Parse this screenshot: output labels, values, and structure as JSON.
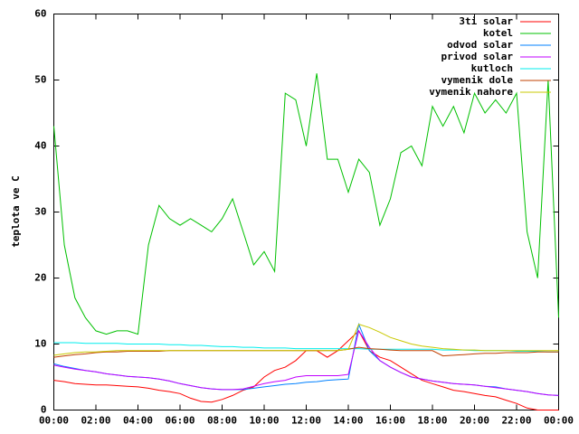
{
  "chart_data": {
    "type": "line",
    "ylabel": "teplota ve C",
    "x": [
      0,
      0.5,
      1,
      1.5,
      2,
      2.5,
      3,
      3.5,
      4,
      4.5,
      5,
      5.5,
      6,
      6.5,
      7,
      7.5,
      8,
      8.5,
      9,
      9.5,
      10,
      10.5,
      11,
      11.5,
      12,
      12.5,
      13,
      13.5,
      14,
      14.5,
      15,
      15.5,
      16,
      16.5,
      17,
      17.5,
      18,
      18.5,
      19,
      19.5,
      20,
      20.5,
      21,
      21.5,
      22,
      22.5,
      23,
      23.5,
      24
    ],
    "xlim": [
      0,
      24
    ],
    "xticks": [
      {
        "value": 0,
        "label": "00:00"
      },
      {
        "value": 2,
        "label": "02:00"
      },
      {
        "value": 4,
        "label": "04:00"
      },
      {
        "value": 6,
        "label": "06:00"
      },
      {
        "value": 8,
        "label": "08:00"
      },
      {
        "value": 10,
        "label": "10:00"
      },
      {
        "value": 12,
        "label": "12:00"
      },
      {
        "value": 14,
        "label": "14:00"
      },
      {
        "value": 16,
        "label": "16:00"
      },
      {
        "value": 18,
        "label": "18:00"
      },
      {
        "value": 20,
        "label": "20:00"
      },
      {
        "value": 22,
        "label": "22:00"
      },
      {
        "value": 24,
        "label": "00:00"
      }
    ],
    "ylim": [
      0,
      60
    ],
    "yticks": [
      0,
      10,
      20,
      30,
      40,
      50,
      60
    ],
    "grid": false,
    "legend": "top-right",
    "series": [
      {
        "name": "3ti solar",
        "color": "#ff0000",
        "values": [
          4.5,
          4.3,
          4,
          3.9,
          3.8,
          3.8,
          3.7,
          3.6,
          3.5,
          3.3,
          3,
          2.8,
          2.5,
          1.8,
          1.3,
          1.2,
          1.6,
          2.2,
          3,
          3.5,
          5,
          6,
          6.5,
          7.5,
          9,
          9,
          8,
          9,
          10.5,
          12,
          9,
          8,
          7.5,
          6.5,
          5.5,
          4.5,
          4,
          3.5,
          3,
          2.8,
          2.5,
          2.2,
          2,
          1.5,
          1,
          0.3,
          0,
          0,
          0
        ]
      },
      {
        "name": "kotel",
        "color": "#00c000",
        "values": [
          43,
          25,
          17,
          14,
          12,
          11.5,
          12,
          12,
          11.5,
          25,
          31,
          29,
          28,
          29,
          28,
          27,
          29,
          32,
          27,
          22,
          24,
          21,
          48,
          47,
          40,
          51,
          38,
          38,
          33,
          38,
          36,
          28,
          32,
          39,
          40,
          37,
          46,
          43,
          46,
          42,
          48,
          45,
          47,
          45,
          48,
          27,
          20,
          50,
          14
        ]
      },
      {
        "name": "odvod solar",
        "color": "#0080ff",
        "values": [
          7,
          6.6,
          6.3,
          6,
          5.8,
          5.5,
          5.3,
          5.1,
          5,
          4.9,
          4.7,
          4.4,
          4,
          3.7,
          3.4,
          3.2,
          3.1,
          3.1,
          3.1,
          3.3,
          3.5,
          3.7,
          3.9,
          4,
          4.2,
          4.3,
          4.5,
          4.6,
          4.7,
          13,
          9,
          7.5,
          6.5,
          5.7,
          5,
          4.7,
          4.4,
          4.2,
          4,
          3.9,
          3.8,
          3.6,
          3.5,
          3.2,
          3,
          2.8,
          2.5,
          2.3,
          2.2
        ]
      },
      {
        "name": "privod solar",
        "color": "#c000ff",
        "values": [
          6.8,
          6.5,
          6.2,
          6,
          5.8,
          5.5,
          5.3,
          5.1,
          5,
          4.9,
          4.7,
          4.4,
          4,
          3.7,
          3.4,
          3.2,
          3.1,
          3.1,
          3.2,
          3.6,
          4,
          4.3,
          4.5,
          5,
          5.2,
          5.2,
          5.2,
          5.2,
          5.4,
          12,
          9.5,
          7.5,
          6.5,
          5.7,
          5,
          4.7,
          4.4,
          4.2,
          4,
          3.9,
          3.8,
          3.6,
          3.4,
          3.2,
          3,
          2.8,
          2.5,
          2.3,
          2.2
        ]
      },
      {
        "name": "kutloch",
        "color": "#00eeee",
        "values": [
          10.2,
          10.2,
          10.2,
          10.1,
          10.1,
          10.1,
          10.1,
          10,
          10,
          10,
          10,
          9.9,
          9.9,
          9.8,
          9.8,
          9.7,
          9.6,
          9.6,
          9.5,
          9.5,
          9.4,
          9.4,
          9.4,
          9.3,
          9.3,
          9.3,
          9.3,
          9.3,
          9.3,
          9.3,
          9.2,
          9.2,
          9.2,
          9.2,
          9.2,
          9.2,
          9.2,
          9.1,
          9.1,
          9.1,
          9,
          9,
          9,
          9,
          8.9,
          8.9,
          8.9,
          8.8,
          8.8
        ]
      },
      {
        "name": "vymenik dole",
        "color": "#c04000",
        "values": [
          8,
          8.2,
          8.4,
          8.5,
          8.7,
          8.8,
          8.8,
          8.9,
          8.9,
          8.9,
          8.9,
          9,
          9,
          9,
          9,
          9,
          9,
          9,
          9,
          9,
          9,
          9,
          9,
          9,
          9,
          9,
          9,
          9,
          9.2,
          9.5,
          9.3,
          9.2,
          9.1,
          9,
          9,
          9,
          9,
          8.2,
          8.3,
          8.4,
          8.5,
          8.6,
          8.6,
          8.7,
          8.7,
          8.7,
          8.8,
          8.8,
          8.8
        ]
      },
      {
        "name": "vymenik nahore",
        "color": "#c8c800",
        "values": [
          8.3,
          8.5,
          8.7,
          8.8,
          8.8,
          8.9,
          9,
          9,
          9,
          9,
          9,
          9,
          9,
          9,
          9,
          9,
          9,
          9,
          9,
          9,
          9,
          9,
          9,
          9,
          9,
          9,
          9,
          9,
          9.2,
          13,
          12.5,
          11.8,
          11,
          10.5,
          10,
          9.7,
          9.5,
          9.3,
          9.2,
          9.1,
          9.1,
          9,
          9,
          9,
          9,
          9,
          9,
          9,
          9
        ]
      }
    ]
  }
}
